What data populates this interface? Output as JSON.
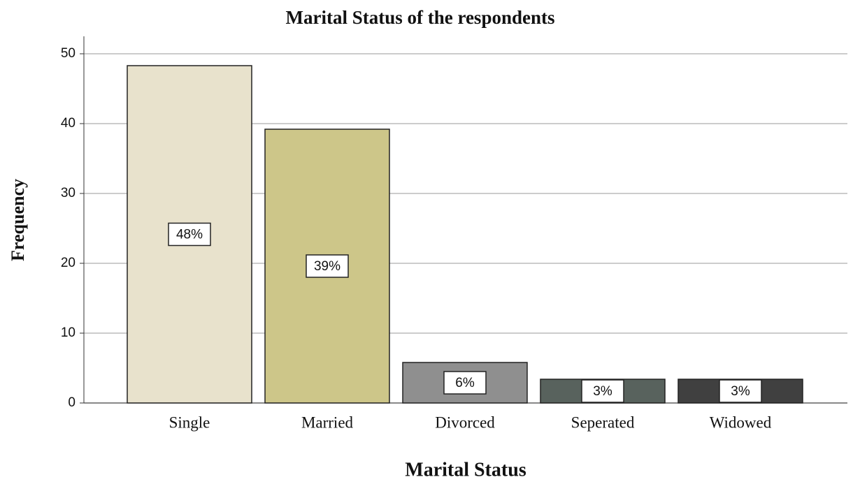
{
  "chart_data": {
    "type": "bar",
    "title": "Marital Status of the respondents",
    "x_label": "Marital Status",
    "y_label": "Frequency",
    "categories": [
      "Single",
      "Married",
      "Divorced",
      "Seperated",
      "Widowed"
    ],
    "values": [
      48.3,
      39.2,
      5.8,
      3.4,
      3.4
    ],
    "value_labels": [
      "48%",
      "39%",
      "6%",
      "3%",
      "3%"
    ],
    "colors": [
      "#e8e2cc",
      "#cdc689",
      "#8f8f8f",
      "#58625d",
      "#404040"
    ],
    "ylim": [
      0,
      52.5
    ],
    "yticks": [
      0,
      10,
      20,
      30,
      40,
      50
    ],
    "grid": true
  }
}
